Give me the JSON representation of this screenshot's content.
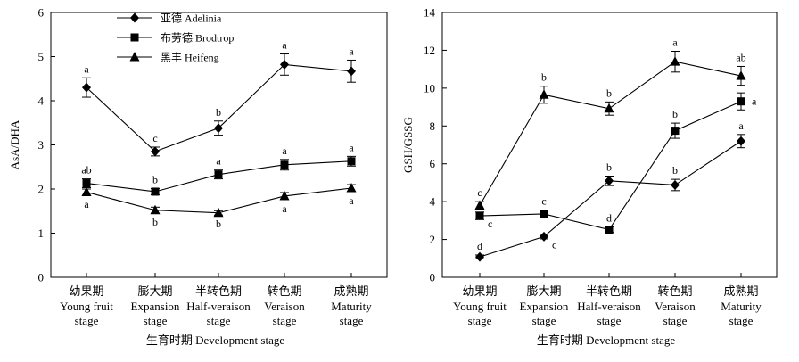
{
  "figure": {
    "stages_cn": [
      "幼果期",
      "膨大期",
      "半转色期",
      "转色期",
      "成熟期"
    ],
    "stages_en": [
      [
        "Young fruit",
        "stage"
      ],
      [
        "Expansion",
        "stage"
      ],
      [
        "Half-veraison",
        "stage"
      ],
      [
        "Veraison",
        "stage"
      ],
      [
        "Maturity",
        "stage"
      ]
    ],
    "legend": [
      {
        "name": "亚德 Adelinia",
        "marker": "diamond"
      },
      {
        "name": "布劳德 Brodtrop",
        "marker": "square"
      },
      {
        "name": "黑丰 Heifeng",
        "marker": "triangle"
      }
    ]
  },
  "chart_data": [
    {
      "type": "line",
      "categories": [
        "幼果期 Young fruit stage",
        "膨大期 Expansion stage",
        "半转色期 Half-veraison stage",
        "转色期 Veraison stage",
        "成熟期 Maturity stage"
      ],
      "xlabel": "生育时期 Development stage",
      "ylabel": "AsA/DHA",
      "ylim": [
        0,
        6
      ],
      "yticks": [
        "0",
        "1",
        "2",
        "3",
        "4",
        "5",
        "6"
      ],
      "grid": false,
      "legend_position": "top-left",
      "series": [
        {
          "name": "亚德 Adelinia",
          "marker": "diamond",
          "values": [
            4.3,
            2.85,
            3.38,
            4.82,
            4.67
          ],
          "errors": [
            0.22,
            0.1,
            0.16,
            0.24,
            0.25
          ],
          "labels": [
            "a",
            "c",
            "b",
            "a",
            "a"
          ],
          "label_pos": [
            "above",
            "above",
            "above",
            "above",
            "above"
          ]
        },
        {
          "name": "布劳德 Brodtrop",
          "marker": "square",
          "values": [
            2.13,
            1.94,
            2.33,
            2.55,
            2.63
          ],
          "errors": [
            0.1,
            0.07,
            0.1,
            0.12,
            0.11
          ],
          "labels": [
            "ab",
            "b",
            "a",
            "a",
            "a"
          ],
          "label_pos": [
            "above",
            "above",
            "above",
            "above",
            "above"
          ]
        },
        {
          "name": "黑丰 Heifeng",
          "marker": "triangle",
          "values": [
            1.93,
            1.52,
            1.46,
            1.84,
            2.02
          ],
          "errors": [
            0.07,
            0.07,
            0.05,
            0.08,
            0.08
          ],
          "labels": [
            "a",
            "b",
            "b",
            "a",
            "a"
          ],
          "label_pos": [
            "below",
            "below",
            "below",
            "below",
            "below"
          ]
        }
      ]
    },
    {
      "type": "line",
      "categories": [
        "幼果期 Young fruit stage",
        "膨大期 Expansion stage",
        "半转色期 Half-veraison stage",
        "转色期 Veraison stage",
        "成熟期 Maturity stage"
      ],
      "xlabel": "生育时期 Development stage",
      "ylabel": "GSH/GSSG",
      "ylim": [
        0,
        14
      ],
      "yticks": [
        "0",
        "2",
        "4",
        "6",
        "8",
        "10",
        "12",
        "14"
      ],
      "grid": false,
      "series": [
        {
          "name": "亚德 Adelinia",
          "marker": "diamond",
          "values": [
            1.08,
            2.15,
            5.1,
            4.88,
            7.2
          ],
          "errors": [
            0.1,
            0.12,
            0.25,
            0.3,
            0.35
          ],
          "labels": [
            "d",
            "c",
            "b",
            "b",
            "a"
          ],
          "label_pos": [
            "above",
            "right-below",
            "above",
            "above",
            "above"
          ]
        },
        {
          "name": "布劳德 Brodtrop",
          "marker": "square",
          "values": [
            3.25,
            3.35,
            2.52,
            7.75,
            9.3
          ],
          "errors": [
            0.2,
            0.2,
            0.15,
            0.4,
            0.45
          ],
          "labels": [
            "c",
            "c",
            "d",
            "b",
            "a"
          ],
          "label_pos": [
            "right-below",
            "above",
            "above",
            "above",
            "right"
          ]
        },
        {
          "name": "黑丰 Heifeng",
          "marker": "triangle",
          "values": [
            3.8,
            9.65,
            8.92,
            11.4,
            10.65
          ],
          "errors": [
            0.2,
            0.45,
            0.35,
            0.55,
            0.5
          ],
          "labels": [
            "c",
            "b",
            "b",
            "a",
            "ab"
          ],
          "label_pos": [
            "above",
            "above",
            "above",
            "above",
            "above"
          ]
        }
      ]
    }
  ]
}
